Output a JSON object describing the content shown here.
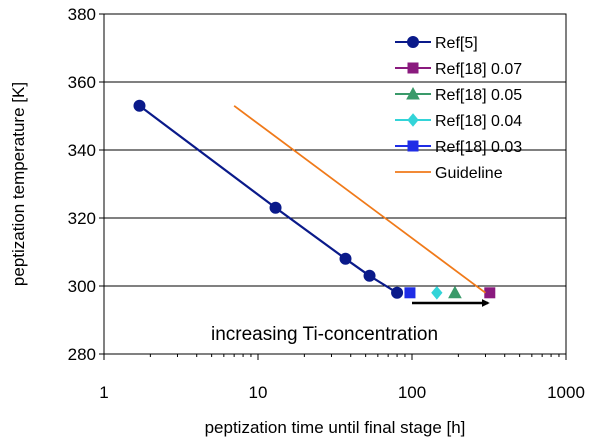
{
  "chart_data": {
    "type": "scatter",
    "xlabel": "peptization time until final stage [h]",
    "ylabel": "peptization temperature [K]",
    "xscale": "log",
    "xlim": [
      1,
      1000
    ],
    "ylim": [
      280,
      380
    ],
    "xticks": [
      1,
      10,
      100,
      1000
    ],
    "xtick_labels": [
      "1",
      "10",
      "100",
      "1000"
    ],
    "yticks": [
      280,
      300,
      320,
      340,
      360,
      380
    ],
    "ytick_labels": [
      "280",
      "300",
      "320",
      "340",
      "360",
      "380"
    ],
    "grid": "horizontal",
    "legend_position": "top-right",
    "series": [
      {
        "name": "Ref[5]",
        "marker": "circle",
        "line": true,
        "color": "#0a1a8a",
        "x": [
          1.7,
          13,
          37,
          53,
          80
        ],
        "y": [
          353,
          323,
          308,
          303,
          298
        ]
      },
      {
        "name": "Ref[18] 0.07",
        "marker": "square",
        "line": false,
        "color": "#8a1a7e",
        "x": [
          320
        ],
        "y": [
          298
        ]
      },
      {
        "name": "Ref[18] 0.05",
        "marker": "triangle",
        "line": false,
        "color": "#3a9a6a",
        "x": [
          190
        ],
        "y": [
          298
        ]
      },
      {
        "name": "Ref[18] 0.04",
        "marker": "diamond",
        "line": false,
        "color": "#33d4d8",
        "x": [
          145
        ],
        "y": [
          298
        ]
      },
      {
        "name": "Ref[18] 0.03",
        "marker": "square",
        "line": false,
        "color": "#1f2de6",
        "x": [
          97
        ],
        "y": [
          298
        ]
      },
      {
        "name": "Guideline",
        "marker": "none",
        "line": true,
        "color": "#f07a1a",
        "x": [
          7,
          300
        ],
        "y": [
          353,
          298
        ]
      }
    ],
    "annotations": [
      {
        "text": "increasing Ti-concentration",
        "arrow_from": [
          100,
          295
        ],
        "arrow_to": [
          320,
          295
        ]
      }
    ]
  }
}
